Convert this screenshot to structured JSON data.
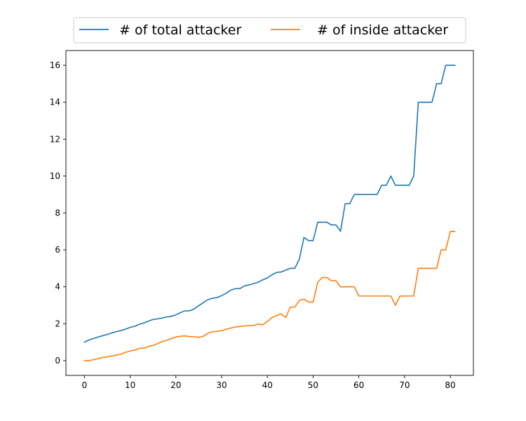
{
  "chart_data": {
    "type": "line",
    "title": "",
    "xlabel": "",
    "ylabel": "",
    "xlim": [
      -4.05,
      85.05
    ],
    "ylim": [
      -0.8,
      16.8
    ],
    "xticks": [
      0,
      10,
      20,
      30,
      40,
      50,
      60,
      70,
      80
    ],
    "yticks": [
      0,
      2,
      4,
      6,
      8,
      10,
      12,
      14,
      16
    ],
    "grid": false,
    "legend_position": "top-center, above plot, two columns",
    "series": [
      {
        "name": "# of total attacker",
        "color": "#1f77b4",
        "x": [
          0,
          1,
          2,
          3,
          4,
          5,
          6,
          7,
          8,
          9,
          10,
          11,
          12,
          13,
          14,
          15,
          16,
          17,
          18,
          19,
          20,
          21,
          22,
          23,
          24,
          25,
          26,
          27,
          28,
          29,
          30,
          31,
          32,
          33,
          34,
          35,
          36,
          37,
          38,
          39,
          40,
          41,
          42,
          43,
          44,
          45,
          46,
          47,
          48,
          49,
          50,
          51,
          52,
          53,
          54,
          55,
          56,
          57,
          58,
          59,
          60,
          61,
          62,
          63,
          64,
          65,
          66,
          67,
          68,
          69,
          70,
          71,
          72,
          73,
          74,
          75,
          76,
          77,
          78,
          79,
          80,
          81
        ],
        "values": [
          1.0,
          1.12,
          1.2,
          1.28,
          1.35,
          1.42,
          1.5,
          1.57,
          1.63,
          1.71,
          1.8,
          1.86,
          1.97,
          2.04,
          2.14,
          2.23,
          2.26,
          2.31,
          2.37,
          2.4,
          2.48,
          2.6,
          2.7,
          2.7,
          2.8,
          2.98,
          3.14,
          3.3,
          3.38,
          3.42,
          3.52,
          3.65,
          3.82,
          3.9,
          3.9,
          4.05,
          4.1,
          4.17,
          4.25,
          4.38,
          4.48,
          4.65,
          4.78,
          4.8,
          4.9,
          5.0,
          5.0,
          5.5,
          6.67,
          6.5,
          6.5,
          7.5,
          7.5,
          7.5,
          7.35,
          7.35,
          7.0,
          8.5,
          8.5,
          9.0,
          9.0,
          9.0,
          9.0,
          9.0,
          9.0,
          9.5,
          9.5,
          10.0,
          9.5,
          9.5,
          9.5,
          9.5,
          10.0,
          14.0,
          14.0,
          14.0,
          14.0,
          15.0,
          15.0,
          16.0,
          16.0,
          16.0
        ]
      },
      {
        "name": "# of inside attacker",
        "color": "#ff7f0e",
        "x": [
          0,
          1,
          2,
          3,
          4,
          5,
          6,
          7,
          8,
          9,
          10,
          11,
          12,
          13,
          14,
          15,
          16,
          17,
          18,
          19,
          20,
          21,
          22,
          23,
          24,
          25,
          26,
          27,
          28,
          29,
          30,
          31,
          32,
          33,
          34,
          35,
          36,
          37,
          38,
          39,
          40,
          41,
          42,
          43,
          44,
          45,
          46,
          47,
          48,
          49,
          50,
          51,
          52,
          53,
          54,
          55,
          56,
          57,
          58,
          59,
          60,
          61,
          62,
          63,
          64,
          65,
          66,
          67,
          68,
          69,
          70,
          71,
          72,
          73,
          74,
          75,
          76,
          77,
          78,
          79,
          80,
          81
        ],
        "values": [
          0.0,
          0.0,
          0.05,
          0.1,
          0.18,
          0.2,
          0.25,
          0.3,
          0.35,
          0.45,
          0.52,
          0.57,
          0.67,
          0.67,
          0.77,
          0.82,
          0.92,
          1.04,
          1.1,
          1.2,
          1.28,
          1.32,
          1.34,
          1.3,
          1.3,
          1.26,
          1.32,
          1.48,
          1.56,
          1.59,
          1.62,
          1.7,
          1.76,
          1.83,
          1.85,
          1.88,
          1.9,
          1.91,
          1.98,
          1.94,
          2.12,
          2.33,
          2.45,
          2.53,
          2.33,
          2.9,
          2.9,
          3.27,
          3.33,
          3.17,
          3.17,
          4.25,
          4.5,
          4.5,
          4.33,
          4.33,
          4.0,
          4.0,
          4.0,
          4.0,
          3.5,
          3.5,
          3.5,
          3.5,
          3.5,
          3.5,
          3.5,
          3.5,
          3.0,
          3.5,
          3.5,
          3.5,
          3.5,
          5.0,
          5.0,
          5.0,
          5.0,
          5.0,
          6.0,
          6.0,
          7.0,
          7.0
        ]
      }
    ]
  }
}
